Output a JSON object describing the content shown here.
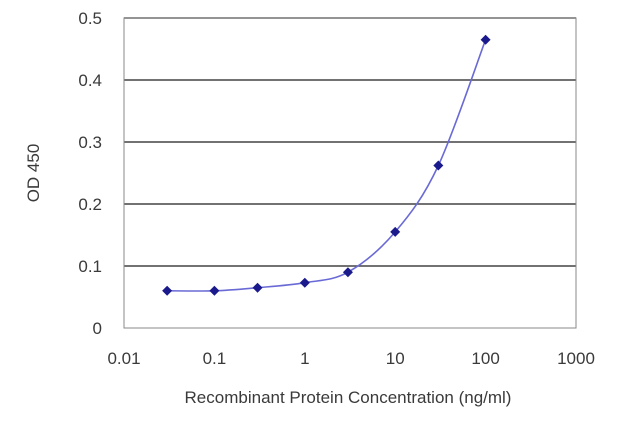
{
  "chart_data": {
    "type": "scatter",
    "title": "",
    "xlabel": "Recombinant Protein Concentration (ng/ml)",
    "ylabel": "OD 450",
    "x_scale": "log",
    "xlim": [
      0.01,
      1000
    ],
    "ylim": [
      0,
      0.5
    ],
    "x_ticks": [
      "0.01",
      "0.1",
      "1",
      "10",
      "100",
      "1000"
    ],
    "y_ticks": [
      "0",
      "0.1",
      "0.2",
      "0.3",
      "0.4",
      "0.5"
    ],
    "grid": "horizontal",
    "fitted_curve": true,
    "series": [
      {
        "x": [
          0.03,
          0.1,
          0.3,
          1,
          3,
          10,
          30,
          100
        ],
        "y": [
          0.06,
          0.06,
          0.065,
          0.073,
          0.09,
          0.155,
          0.262,
          0.465
        ]
      }
    ],
    "colors": {
      "marker": "#1a1a8c",
      "curve": "#6a6ad6",
      "grid": "#444444",
      "plot_border": "#888888"
    }
  }
}
